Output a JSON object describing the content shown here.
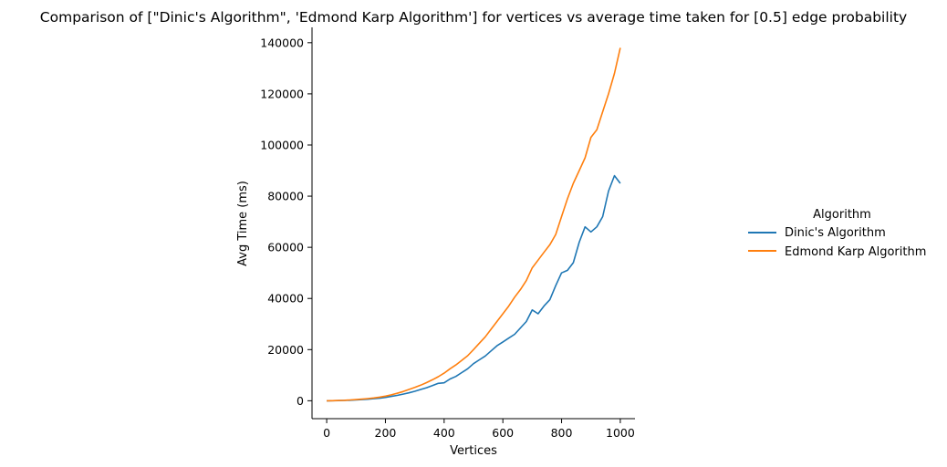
{
  "chart_data": {
    "type": "line",
    "title": "Comparison of [\"Dinic's Algorithm\", 'Edmond Karp Algorithm'] for vertices vs average time taken for [0.5] edge probability",
    "xlabel": "Vertices",
    "ylabel": "Avg Time (ms)",
    "xlim": [
      -50,
      1050
    ],
    "ylim": [
      -7000,
      146000
    ],
    "xticks": [
      0,
      200,
      400,
      600,
      800,
      1000
    ],
    "yticks": [
      0,
      20000,
      40000,
      60000,
      80000,
      100000,
      120000,
      140000
    ],
    "grid": false,
    "legend": {
      "title": "Algorithm",
      "placement": "right"
    },
    "x": [
      0,
      20,
      40,
      60,
      80,
      100,
      120,
      140,
      160,
      180,
      200,
      220,
      240,
      260,
      280,
      300,
      320,
      340,
      360,
      380,
      400,
      420,
      440,
      460,
      480,
      500,
      520,
      540,
      560,
      580,
      600,
      620,
      640,
      660,
      680,
      700,
      720,
      740,
      760,
      780,
      800,
      820,
      840,
      860,
      880,
      900,
      920,
      940,
      960,
      980,
      1000
    ],
    "series": [
      {
        "name": "Dinic's Algorithm",
        "color": "#1f77b4",
        "values": [
          0,
          20,
          60,
          120,
          200,
          300,
          450,
          600,
          800,
          1000,
          1300,
          1700,
          2100,
          2600,
          3100,
          3700,
          4400,
          5100,
          5900,
          6800,
          7000,
          8500,
          9500,
          11000,
          12500,
          14500,
          16000,
          17500,
          19500,
          21500,
          23000,
          24500,
          26000,
          28500,
          31000,
          35500,
          34000,
          37000,
          39500,
          45000,
          50000,
          51000,
          54000,
          62000,
          68000,
          66000,
          68000,
          72000,
          82000,
          88000,
          85000
        ]
      },
      {
        "name": "Edmond Karp Algorithm",
        "color": "#ff7f0e",
        "values": [
          0,
          30,
          90,
          180,
          300,
          450,
          650,
          850,
          1100,
          1400,
          1800,
          2300,
          2900,
          3600,
          4400,
          5200,
          6100,
          7100,
          8200,
          9400,
          10800,
          12500,
          14000,
          15800,
          17600,
          20000,
          22500,
          25000,
          28000,
          31000,
          34000,
          37000,
          40500,
          43500,
          47000,
          52000,
          55000,
          58000,
          61000,
          65000,
          72000,
          79000,
          85000,
          90000,
          95000,
          103000,
          106000,
          113000,
          120000,
          128000,
          138000
        ]
      }
    ]
  }
}
